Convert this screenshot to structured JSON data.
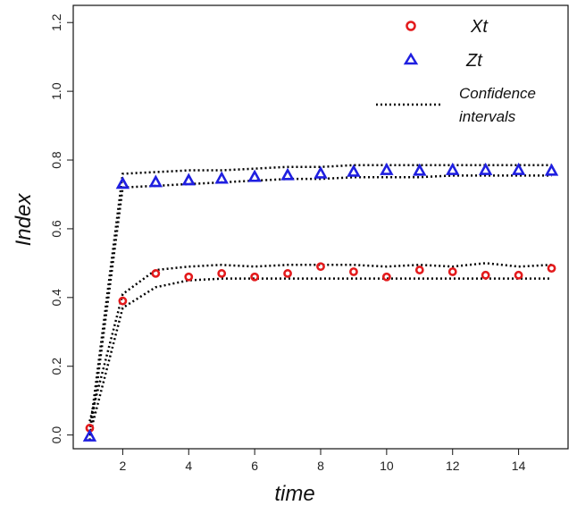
{
  "chart_data": {
    "type": "scatter",
    "xlabel": "time",
    "ylabel": "Index",
    "xlim": [
      0.5,
      15.5
    ],
    "ylim": [
      -0.04,
      1.25
    ],
    "x_ticks": [
      2,
      4,
      6,
      8,
      10,
      12,
      14
    ],
    "y_ticks": [
      0.0,
      0.2,
      0.4,
      0.6,
      0.8,
      1.0,
      1.2
    ],
    "y_tick_labels": [
      "0.0",
      "0.2",
      "0.4",
      "0.6",
      "0.8",
      "1.0",
      "1.2"
    ],
    "grid": false,
    "legend_position": "top-right",
    "legend": {
      "entries": [
        {
          "label": "Xt",
          "marker": "circle",
          "color": "#e31a1c"
        },
        {
          "label": "Zt",
          "marker": "triangle",
          "color": "#1f1fe0"
        },
        {
          "label_line1": "Confidence",
          "label_line2": "intervals",
          "marker": "dotted-line",
          "color": "#000000"
        }
      ]
    },
    "series": [
      {
        "name": "Xt",
        "marker": "circle",
        "color": "#e31a1c",
        "x": [
          1,
          2,
          3,
          4,
          5,
          6,
          7,
          8,
          9,
          10,
          11,
          12,
          13,
          14,
          15
        ],
        "y": [
          0.02,
          0.39,
          0.47,
          0.46,
          0.47,
          0.46,
          0.47,
          0.49,
          0.475,
          0.46,
          0.48,
          0.475,
          0.465,
          0.465,
          0.485
        ]
      },
      {
        "name": "Zt",
        "marker": "triangle",
        "color": "#1f1fe0",
        "x": [
          1,
          2,
          3,
          4,
          5,
          6,
          7,
          8,
          9,
          10,
          11,
          12,
          13,
          14,
          15
        ],
        "y": [
          -0.005,
          0.73,
          0.735,
          0.74,
          0.745,
          0.75,
          0.755,
          0.76,
          0.765,
          0.77,
          0.768,
          0.77,
          0.77,
          0.77,
          0.768
        ]
      }
    ],
    "confidence_intervals": [
      {
        "for": "Xt",
        "x": [
          1,
          2,
          3,
          4,
          5,
          6,
          7,
          8,
          9,
          10,
          11,
          12,
          13,
          14,
          15
        ],
        "upper": [
          0.04,
          0.41,
          0.48,
          0.49,
          0.495,
          0.49,
          0.495,
          0.495,
          0.495,
          0.49,
          0.495,
          0.49,
          0.5,
          0.49,
          0.495
        ],
        "lower": [
          0.0,
          0.37,
          0.43,
          0.45,
          0.455,
          0.455,
          0.455,
          0.455,
          0.455,
          0.455,
          0.455,
          0.455,
          0.455,
          0.455,
          0.455
        ]
      },
      {
        "for": "Zt",
        "x": [
          1,
          2,
          3,
          4,
          5,
          6,
          7,
          8,
          9,
          10,
          11,
          12,
          13,
          14,
          15
        ],
        "upper": [
          0.01,
          0.76,
          0.765,
          0.77,
          0.77,
          0.775,
          0.78,
          0.78,
          0.785,
          0.785,
          0.785,
          0.785,
          0.785,
          0.785,
          0.785
        ],
        "lower": [
          -0.015,
          0.72,
          0.725,
          0.73,
          0.735,
          0.74,
          0.745,
          0.745,
          0.75,
          0.75,
          0.75,
          0.755,
          0.755,
          0.755,
          0.755
        ]
      }
    ]
  }
}
